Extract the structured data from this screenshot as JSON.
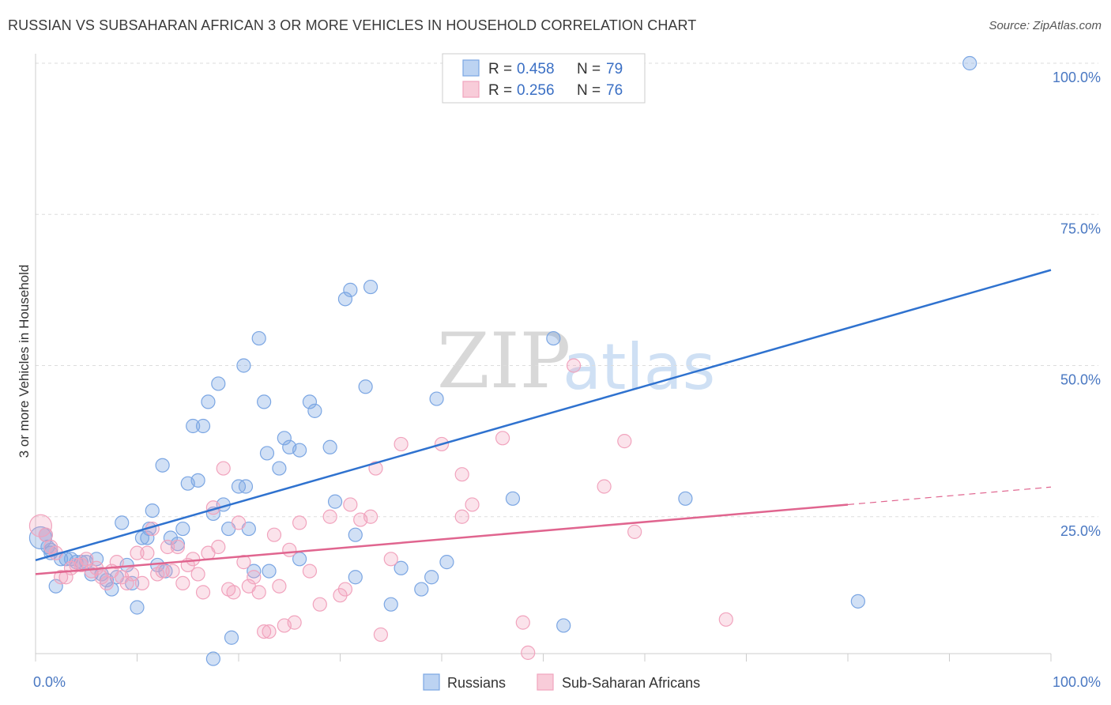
{
  "title": "RUSSIAN VS SUBSAHARAN AFRICAN 3 OR MORE VEHICLES IN HOUSEHOLD CORRELATION CHART",
  "source": "Source: ZipAtlas.com",
  "watermark": {
    "zip": "ZIP",
    "atlas": "atlas"
  },
  "colors": {
    "russians": "#7ba6e3",
    "russians_line": "#2f72cf",
    "subsaharan": "#f1a3bd",
    "subsaharan_line": "#e0658f",
    "grid": "#dddddd"
  },
  "legend": {
    "rows": [
      {
        "r_label": "R =",
        "r_value": "0.458",
        "n_label": "N =",
        "n_value": "79"
      },
      {
        "r_label": "R =",
        "r_value": "0.256",
        "n_label": "N =",
        "n_value": "76"
      }
    ]
  },
  "chart_data": {
    "type": "scatter",
    "ylabel": "3 or more Vehicles in Household",
    "xlabel": "",
    "xlim": [
      0,
      100
    ],
    "ylim": [
      0,
      100
    ],
    "x_tick_labels": [
      "0.0%",
      "100.0%"
    ],
    "y_tick_labels": [
      "25.0%",
      "50.0%",
      "75.0%",
      "100.0%"
    ],
    "y_ticks": [
      25,
      50,
      75,
      100
    ],
    "grid": true,
    "legend_placement": "top-center",
    "series": [
      {
        "name": "Russians",
        "trend": {
          "x": [
            0,
            100
          ],
          "y": [
            17.8,
            65.8
          ]
        },
        "points": [
          [
            0.5,
            21.5
          ],
          [
            1,
            22
          ],
          [
            1.2,
            20
          ],
          [
            1.5,
            19.5
          ],
          [
            2,
            13.5
          ],
          [
            2.5,
            18
          ],
          [
            3,
            18
          ],
          [
            3.5,
            18
          ],
          [
            4,
            17.5
          ],
          [
            4.5,
            17.5
          ],
          [
            5,
            17.5
          ],
          [
            5.5,
            15.5
          ],
          [
            6,
            18
          ],
          [
            6.5,
            15.5
          ],
          [
            7,
            14.5
          ],
          [
            7.5,
            13
          ],
          [
            8,
            15
          ],
          [
            8.5,
            24
          ],
          [
            9,
            17
          ],
          [
            9.5,
            14
          ],
          [
            10,
            10
          ],
          [
            10.5,
            21.5
          ],
          [
            11,
            21.5
          ],
          [
            11.2,
            23
          ],
          [
            11.5,
            26
          ],
          [
            12,
            17
          ],
          [
            12.5,
            33.5
          ],
          [
            12.8,
            16
          ],
          [
            13.3,
            21.5
          ],
          [
            14,
            20.5
          ],
          [
            14.5,
            23
          ],
          [
            15,
            30.5
          ],
          [
            15.5,
            40
          ],
          [
            16,
            31
          ],
          [
            16.5,
            40
          ],
          [
            17,
            44
          ],
          [
            17.5,
            25.5
          ],
          [
            17.5,
            1.5
          ],
          [
            18,
            47
          ],
          [
            18.5,
            27
          ],
          [
            19,
            23
          ],
          [
            19.3,
            5
          ],
          [
            20,
            30
          ],
          [
            20.5,
            50
          ],
          [
            20.7,
            30
          ],
          [
            21,
            23
          ],
          [
            21.5,
            16
          ],
          [
            22,
            54.5
          ],
          [
            22.5,
            44
          ],
          [
            22.8,
            35.5
          ],
          [
            23,
            16
          ],
          [
            24,
            33
          ],
          [
            24.5,
            38
          ],
          [
            25,
            36.5
          ],
          [
            26,
            36
          ],
          [
            26,
            18
          ],
          [
            27,
            44
          ],
          [
            27.5,
            42.5
          ],
          [
            29,
            36.5
          ],
          [
            29.5,
            27.5
          ],
          [
            30.5,
            61
          ],
          [
            31,
            62.5
          ],
          [
            31.5,
            15
          ],
          [
            31.5,
            22
          ],
          [
            32.5,
            46.5
          ],
          [
            33,
            63
          ],
          [
            35,
            10.5
          ],
          [
            36,
            16.5
          ],
          [
            38,
            13
          ],
          [
            39,
            15
          ],
          [
            39.5,
            44.5
          ],
          [
            40.5,
            17.5
          ],
          [
            47,
            28
          ],
          [
            51,
            54.5
          ],
          [
            52,
            7
          ],
          [
            64,
            28
          ],
          [
            81,
            11
          ],
          [
            92,
            100
          ],
          [
            1.5,
            19
          ]
        ]
      },
      {
        "name": "Sub-Saharan Africans",
        "trend": {
          "x": [
            0,
            80
          ],
          "y": [
            15.5,
            27
          ],
          "dashed_to": {
            "x": 100,
            "y": 29.9
          }
        },
        "points": [
          [
            0.5,
            23.5
          ],
          [
            1,
            22
          ],
          [
            1.5,
            20
          ],
          [
            2,
            19
          ],
          [
            2.5,
            15
          ],
          [
            3,
            15
          ],
          [
            3.5,
            16.5
          ],
          [
            4,
            17
          ],
          [
            4.5,
            17
          ],
          [
            5,
            18
          ],
          [
            5.5,
            16
          ],
          [
            6,
            16.5
          ],
          [
            6.5,
            15
          ],
          [
            7,
            14
          ],
          [
            7.5,
            16
          ],
          [
            8,
            17.5
          ],
          [
            8.5,
            15
          ],
          [
            9,
            14
          ],
          [
            9.5,
            15.5
          ],
          [
            10,
            19
          ],
          [
            10.5,
            14
          ],
          [
            11,
            19
          ],
          [
            11.5,
            23
          ],
          [
            12,
            15.5
          ],
          [
            12.5,
            16
          ],
          [
            13,
            20
          ],
          [
            13.5,
            16
          ],
          [
            14,
            20
          ],
          [
            14.5,
            14
          ],
          [
            15,
            17
          ],
          [
            15.5,
            18
          ],
          [
            16,
            15.5
          ],
          [
            16.5,
            12.5
          ],
          [
            17,
            19
          ],
          [
            17.5,
            26.5
          ],
          [
            18,
            20
          ],
          [
            18.5,
            33
          ],
          [
            19,
            13
          ],
          [
            19.5,
            12.5
          ],
          [
            20,
            24
          ],
          [
            20.5,
            17.5
          ],
          [
            21,
            13.5
          ],
          [
            21.5,
            15
          ],
          [
            22,
            12.5
          ],
          [
            22.5,
            6
          ],
          [
            23,
            6
          ],
          [
            23.5,
            22
          ],
          [
            24,
            13.5
          ],
          [
            24.5,
            7
          ],
          [
            25,
            19.5
          ],
          [
            25.5,
            7.5
          ],
          [
            26,
            24
          ],
          [
            27,
            16
          ],
          [
            28,
            10.5
          ],
          [
            29,
            25
          ],
          [
            30,
            12
          ],
          [
            30.5,
            13
          ],
          [
            31,
            27
          ],
          [
            32,
            24.5
          ],
          [
            33,
            25
          ],
          [
            33.5,
            33
          ],
          [
            34,
            5.5
          ],
          [
            35,
            18
          ],
          [
            36,
            37
          ],
          [
            40,
            37
          ],
          [
            42,
            32
          ],
          [
            42,
            25
          ],
          [
            43,
            27
          ],
          [
            46,
            38
          ],
          [
            48,
            7.5
          ],
          [
            48.5,
            2.5
          ],
          [
            53,
            50
          ],
          [
            58,
            37.5
          ],
          [
            59,
            22.5
          ],
          [
            68,
            8
          ],
          [
            56,
            30
          ]
        ]
      }
    ]
  },
  "bottom_legend": {
    "items": [
      "Russians",
      "Sub-Saharan Africans"
    ]
  }
}
